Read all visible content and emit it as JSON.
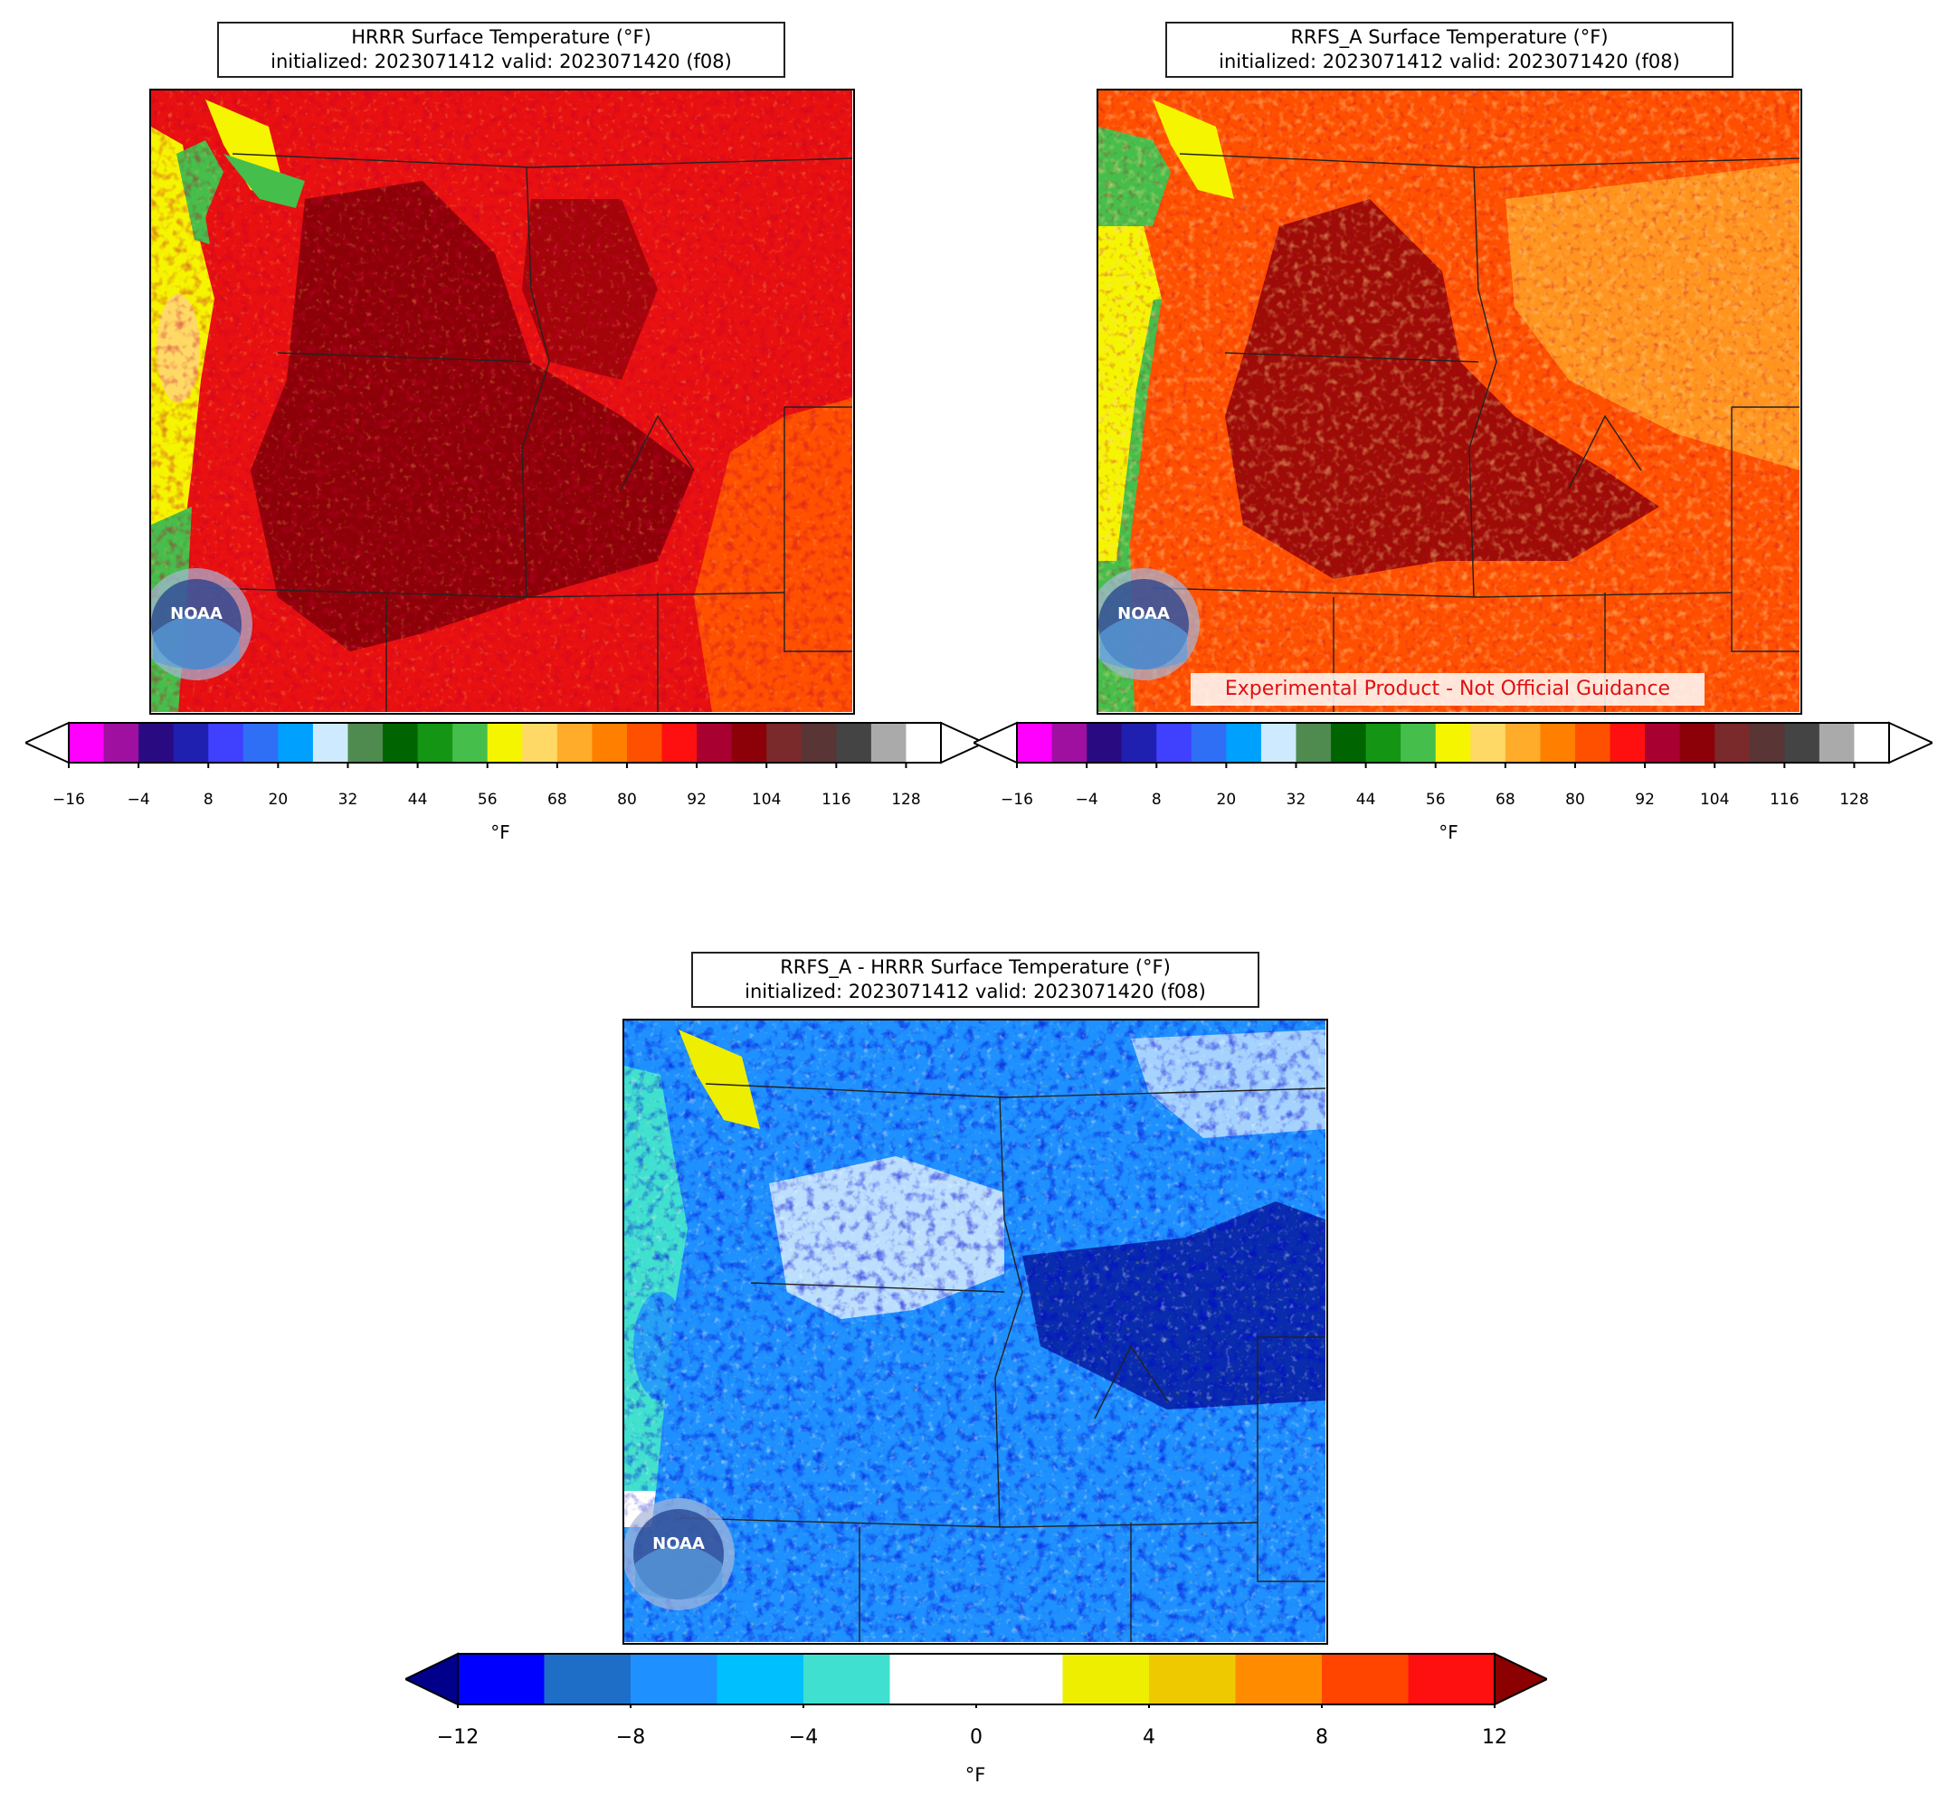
{
  "panels": [
    {
      "id": "hrrr",
      "title_line1": "HRRR Surface Temperature (°F)",
      "title_line2": "initialized: 2023071412 valid: 2023071420 (f08)",
      "colorbar_unit": "°F"
    },
    {
      "id": "rrfs",
      "title_line1": "RRFS_A Surface Temperature (°F)",
      "title_line2": "initialized: 2023071412 valid: 2023071420 (f08)",
      "colorbar_unit": "°F",
      "disclaimer": "Experimental Product - Not Official Guidance"
    },
    {
      "id": "diff",
      "title_line1": "RRFS_A - HRRR Surface Temperature (°F)",
      "title_line2": "initialized: 2023071412 valid: 2023071420 (f08)",
      "colorbar_unit": "°F"
    }
  ],
  "temp_colorbar": {
    "ticks": [
      "−16",
      "−4",
      "8",
      "20",
      "32",
      "44",
      "56",
      "68",
      "80",
      "92",
      "104",
      "116",
      "128"
    ],
    "colors": [
      "#ff00ff",
      "#a010a0",
      "#2a0a80",
      "#2020b0",
      "#4040ff",
      "#2f6ff5",
      "#00a0ff",
      "#cdeaff",
      "#4f8a4f",
      "#006400",
      "#149614",
      "#46be4b",
      "#f5f500",
      "#ffd966",
      "#ffac2a",
      "#ff8000",
      "#ff5000",
      "#ff1010",
      "#a80030",
      "#8c0008",
      "#7a2a2a",
      "#5a3535",
      "#444444",
      "#aaaaaa",
      "#ffffff"
    ]
  },
  "diff_colorbar": {
    "ticks": [
      "−12",
      "−8",
      "−4",
      "0",
      "4",
      "8",
      "12"
    ],
    "colors": [
      "#0000ff",
      "#1e6ec8",
      "#1e90ff",
      "#00bfff",
      "#40e0d0",
      "#ffffff",
      "#ffffff",
      "#eeee00",
      "#eec900",
      "#ff8c00",
      "#ff4500",
      "#ff1010"
    ],
    "under_color": "#00008b",
    "over_color": "#8b0000"
  },
  "logo_text": "NOAA"
}
